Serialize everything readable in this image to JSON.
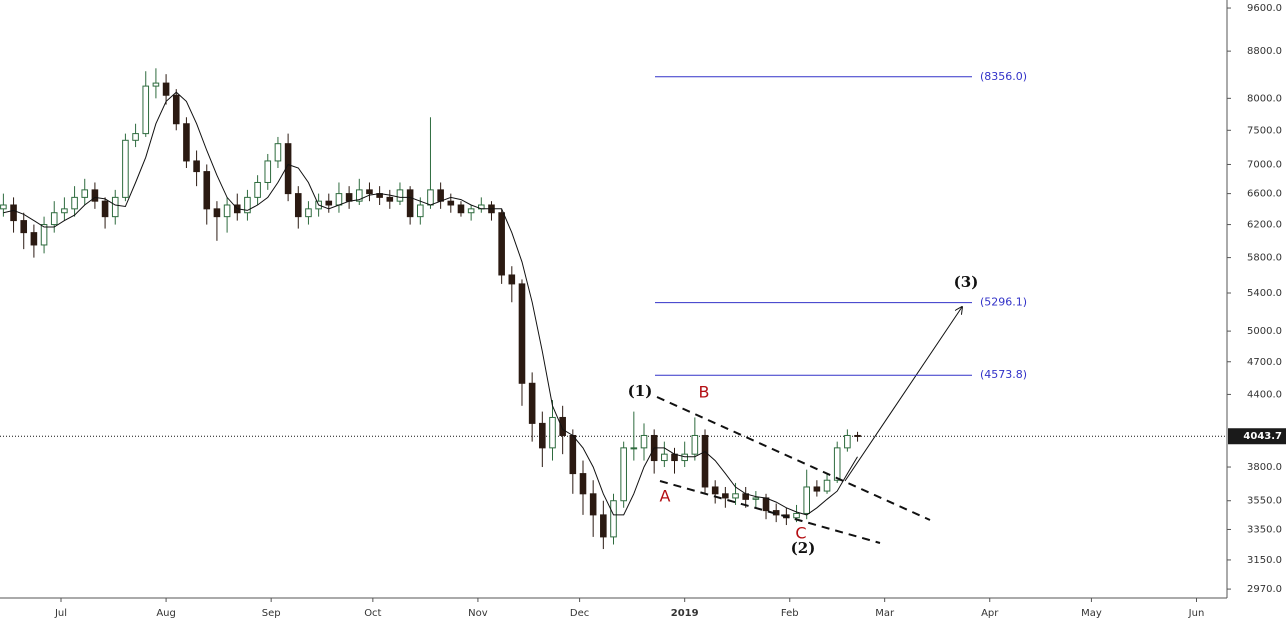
{
  "chart_data": {
    "type": "candlestick",
    "log_scale": true,
    "up_color": "#2e6b3e",
    "up_fill": "#ffffff",
    "down_color": "#2b1a12",
    "ma_color": "#111111",
    "level_color": "#3232c8",
    "xlim": [
      -18,
      344
    ],
    "xticks": [
      {
        "value": 0,
        "label": "Jul"
      },
      {
        "value": 31,
        "label": "Aug"
      },
      {
        "value": 62,
        "label": "Sep"
      },
      {
        "value": 92,
        "label": "Oct"
      },
      {
        "value": 123,
        "label": "Nov"
      },
      {
        "value": 153,
        "label": "Dec"
      },
      {
        "value": 184,
        "label": "2019"
      },
      {
        "value": 215,
        "label": "Feb"
      },
      {
        "value": 243,
        "label": "Mar"
      },
      {
        "value": 274,
        "label": "Apr"
      },
      {
        "value": 304,
        "label": "May"
      },
      {
        "value": 335,
        "label": "Jun"
      }
    ],
    "ylim": [
      2917,
      9757
    ],
    "yticks": [
      {
        "value": 9600,
        "label": "9600.0"
      },
      {
        "value": 8800,
        "label": "8800.0"
      },
      {
        "value": 8000,
        "label": "8000.0"
      },
      {
        "value": 7500,
        "label": "7500.0"
      },
      {
        "value": 7000,
        "label": "7000.0"
      },
      {
        "value": 6600,
        "label": "6600.0"
      },
      {
        "value": 6200,
        "label": "6200.0"
      },
      {
        "value": 5800,
        "label": "5800.0"
      },
      {
        "value": 5400,
        "label": "5400.0"
      },
      {
        "value": 5000,
        "label": "5000.0"
      },
      {
        "value": 4700,
        "label": "4700.0"
      },
      {
        "value": 4400,
        "label": "4400.0"
      },
      {
        "value": 3800,
        "label": "3800.0"
      },
      {
        "value": 3550,
        "label": "3550.0"
      },
      {
        "value": 3350,
        "label": "3350.0"
      },
      {
        "value": 3150,
        "label": "3150.0"
      },
      {
        "value": 2970,
        "label": "2970.0"
      }
    ],
    "last_price": 4043.7,
    "levels": [
      {
        "value": 8356.0,
        "label": "(8356.0)"
      },
      {
        "value": 5296.1,
        "label": "(5296.1)"
      },
      {
        "value": 4573.8,
        "label": "(4573.8)"
      }
    ],
    "annotations": [
      "(1)",
      "B",
      "A",
      "C",
      "(2)",
      "(3)"
    ],
    "x": [
      -17,
      -14,
      -11,
      -8,
      -5,
      -2,
      1,
      4,
      7,
      10,
      13,
      16,
      19,
      22,
      25,
      28,
      31,
      34,
      37,
      40,
      43,
      46,
      49,
      52,
      55,
      58,
      61,
      64,
      67,
      70,
      73,
      76,
      79,
      82,
      85,
      88,
      91,
      94,
      97,
      100,
      103,
      106,
      109,
      112,
      115,
      118,
      121,
      124,
      127,
      130,
      133,
      136,
      139,
      142,
      145,
      148,
      151,
      154,
      157,
      160,
      163,
      166,
      169,
      172,
      175,
      178,
      181,
      184,
      187,
      190,
      193,
      196,
      199,
      202,
      205,
      208,
      211,
      214,
      217,
      220,
      223,
      226,
      229,
      232,
      235
    ],
    "open": [
      6400,
      6450,
      6250,
      6100,
      5950,
      6200,
      6350,
      6400,
      6550,
      6650,
      6500,
      6300,
      6550,
      7350,
      7450,
      8200,
      8250,
      8050,
      7600,
      7050,
      6900,
      6400,
      6300,
      6450,
      6350,
      6550,
      6750,
      7050,
      7300,
      6600,
      6300,
      6400,
      6500,
      6450,
      6600,
      6500,
      6650,
      6600,
      6550,
      6500,
      6650,
      6300,
      6450,
      6650,
      6500,
      6450,
      6350,
      6400,
      6450,
      6350,
      5600,
      5500,
      4500,
      4150,
      3950,
      4200,
      4050,
      3750,
      3600,
      3450,
      3300,
      3550,
      3950,
      3950,
      4050,
      3850,
      3900,
      3850,
      3900,
      4050,
      3650,
      3600,
      3570,
      3600,
      3560,
      3570,
      3480,
      3450,
      3430,
      3460,
      3650,
      3620,
      3700,
      3950,
      4050
    ],
    "high": [
      6600,
      6550,
      6350,
      6200,
      6300,
      6500,
      6550,
      6700,
      6800,
      6750,
      6550,
      6650,
      7450,
      7600,
      8450,
      8500,
      8400,
      8150,
      7700,
      7200,
      7000,
      6500,
      6550,
      6600,
      6650,
      6850,
      7150,
      7400,
      7450,
      6700,
      6500,
      6600,
      6600,
      6750,
      6700,
      6800,
      6750,
      6700,
      6650,
      6750,
      6700,
      6550,
      7700,
      6750,
      6600,
      6500,
      6450,
      6550,
      6500,
      6400,
      5700,
      5550,
      4600,
      4250,
      4350,
      4300,
      4100,
      3850,
      3700,
      3550,
      3600,
      4000,
      4250,
      4150,
      4100,
      4000,
      3950,
      4000,
      4200,
      4100,
      3700,
      3650,
      3680,
      3650,
      3620,
      3600,
      3530,
      3500,
      3520,
      3780,
      3700,
      3750,
      4000,
      4100,
      4080
    ],
    "low": [
      6300,
      6100,
      5900,
      5800,
      5850,
      6100,
      6250,
      6300,
      6450,
      6400,
      6150,
      6200,
      6500,
      7250,
      7400,
      8000,
      7900,
      7500,
      6950,
      6700,
      6200,
      6000,
      6100,
      6250,
      6250,
      6450,
      6650,
      6950,
      6500,
      6150,
      6200,
      6300,
      6350,
      6350,
      6400,
      6450,
      6500,
      6450,
      6400,
      6450,
      6200,
      6200,
      6400,
      6400,
      6350,
      6300,
      6250,
      6350,
      6250,
      5500,
      5300,
      4300,
      4000,
      3800,
      3850,
      3900,
      3600,
      3450,
      3300,
      3220,
      3250,
      3500,
      3850,
      3850,
      3750,
      3800,
      3750,
      3800,
      3850,
      3600,
      3530,
      3500,
      3520,
      3500,
      3500,
      3420,
      3400,
      3380,
      3400,
      3420,
      3580,
      3600,
      3680,
      3920,
      4000
    ],
    "close": [
      6450,
      6250,
      6100,
      5950,
      6200,
      6350,
      6400,
      6550,
      6650,
      6500,
      6300,
      6550,
      7350,
      7450,
      8200,
      8250,
      8050,
      7600,
      7050,
      6900,
      6400,
      6300,
      6450,
      6350,
      6550,
      6750,
      7050,
      7300,
      6600,
      6300,
      6400,
      6500,
      6450,
      6600,
      6500,
      6650,
      6600,
      6550,
      6500,
      6650,
      6300,
      6450,
      6650,
      6500,
      6450,
      6350,
      6400,
      6450,
      6350,
      5600,
      5500,
      4500,
      4150,
      3950,
      4200,
      4050,
      3750,
      3600,
      3450,
      3300,
      3550,
      3950,
      3950,
      4050,
      3850,
      3900,
      3850,
      3900,
      4050,
      3650,
      3600,
      3570,
      3600,
      3560,
      3570,
      3480,
      3450,
      3430,
      3460,
      3650,
      3620,
      3700,
      3950,
      4050,
      4044
    ],
    "ma": [
      6350,
      6380,
      6330,
      6250,
      6170,
      6170,
      6250,
      6320,
      6450,
      6550,
      6530,
      6450,
      6430,
      6750,
      7100,
      7600,
      7950,
      8100,
      7950,
      7600,
      7200,
      6850,
      6550,
      6400,
      6380,
      6450,
      6550,
      6750,
      7000,
      6950,
      6750,
      6450,
      6400,
      6450,
      6500,
      6520,
      6580,
      6600,
      6580,
      6550,
      6550,
      6500,
      6450,
      6500,
      6550,
      6520,
      6450,
      6400,
      6400,
      6400,
      6100,
      5750,
      5300,
      4800,
      4300,
      4100,
      4050,
      3950,
      3800,
      3600,
      3450,
      3450,
      3600,
      3800,
      3950,
      3950,
      3900,
      3880,
      3880,
      3920,
      3850,
      3750,
      3650,
      3600,
      3580,
      3570,
      3540,
      3500,
      3470,
      3450,
      3500,
      3560,
      3620,
      3750,
      3880
    ]
  }
}
